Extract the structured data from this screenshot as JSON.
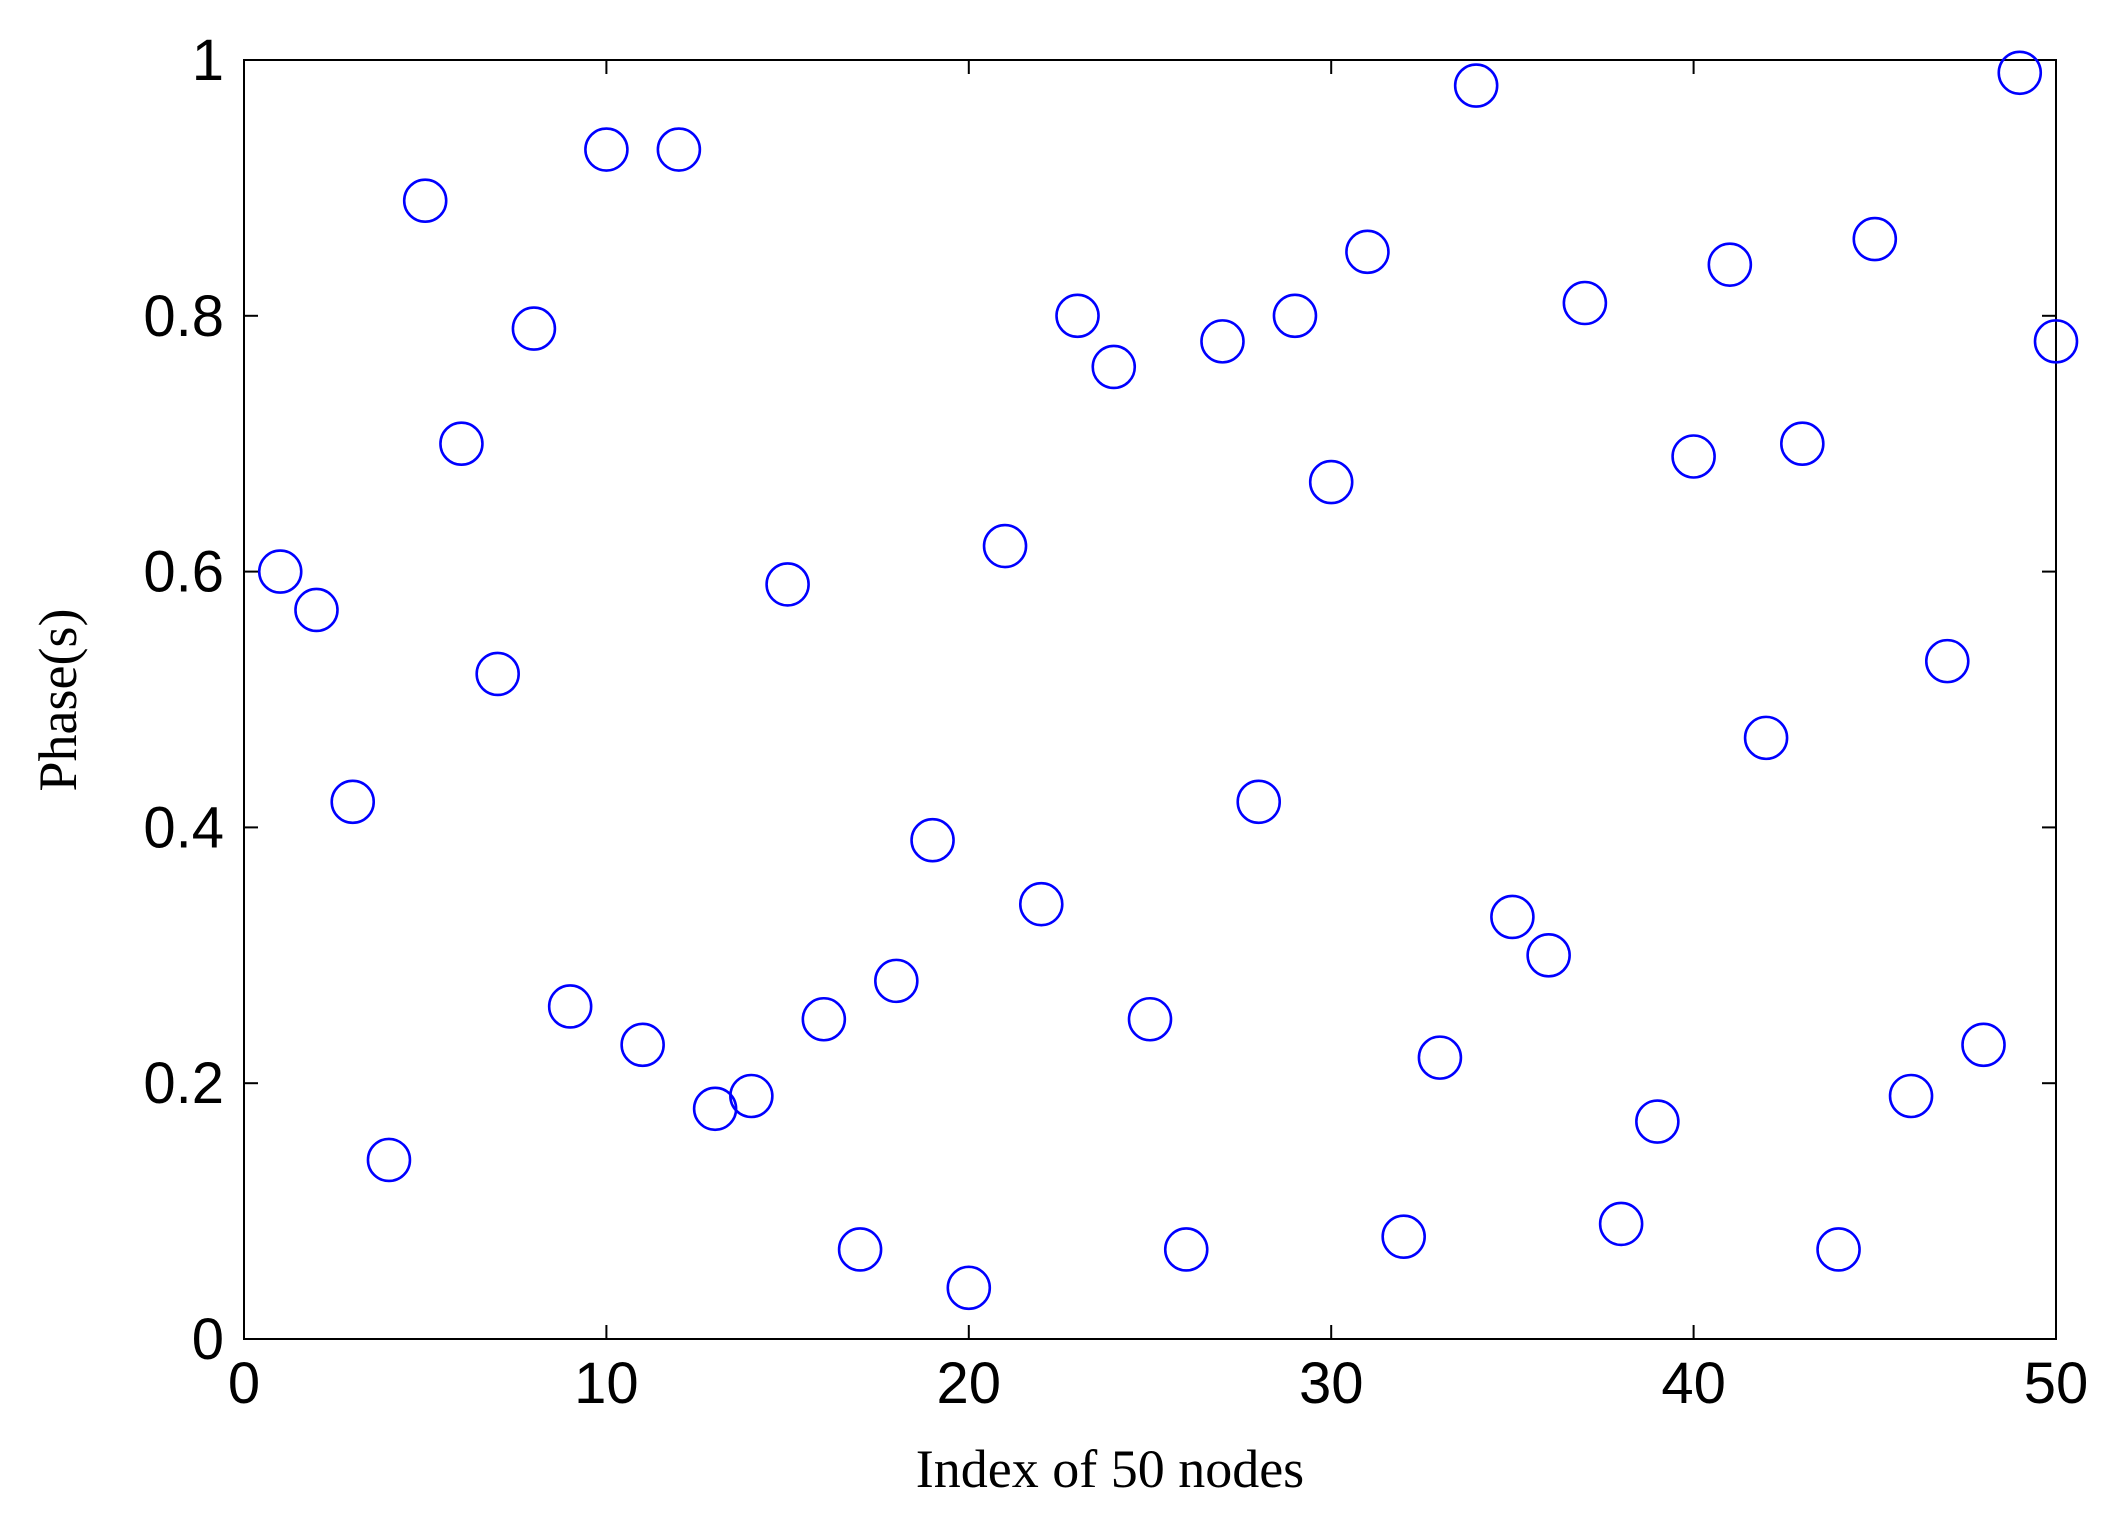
{
  "chart_data": {
    "type": "scatter",
    "title": "",
    "xlabel": "Index of 50 nodes",
    "ylabel": "Phase(s)",
    "xlim": [
      0,
      50
    ],
    "ylim": [
      0,
      1
    ],
    "grid": false,
    "legend": "none",
    "marker": "open-circle",
    "marker_color": "#0000ff",
    "x_ticks": [
      "0",
      "10",
      "20",
      "30",
      "40",
      "50"
    ],
    "y_ticks": [
      "0",
      "0.2",
      "0.4",
      "0.6",
      "0.8",
      "1"
    ],
    "series": [
      {
        "x": [
          1,
          2,
          3,
          4,
          5,
          6,
          7,
          8,
          9,
          10,
          11,
          12,
          13,
          14,
          15,
          16,
          17,
          18,
          19,
          20,
          21,
          22,
          23,
          24,
          25,
          26,
          27,
          28,
          29,
          30,
          31,
          32,
          33,
          34,
          35,
          36,
          37,
          38,
          39,
          40,
          41,
          42,
          43,
          44,
          45,
          46,
          47,
          48,
          49,
          50
        ],
        "y": [
          0.6,
          0.57,
          0.42,
          0.14,
          0.89,
          0.7,
          0.52,
          0.79,
          0.26,
          0.93,
          0.23,
          0.93,
          0.18,
          0.19,
          0.59,
          0.25,
          0.07,
          0.28,
          0.39,
          0.04,
          0.62,
          0.34,
          0.8,
          0.76,
          0.25,
          0.07,
          0.78,
          0.42,
          0.8,
          0.67,
          0.85,
          0.08,
          0.22,
          0.98,
          0.33,
          0.3,
          0.81,
          0.09,
          0.17,
          0.69,
          0.84,
          0.47,
          0.7,
          0.07,
          0.86,
          0.19,
          0.53,
          0.23,
          0.99,
          0.78
        ]
      }
    ]
  }
}
